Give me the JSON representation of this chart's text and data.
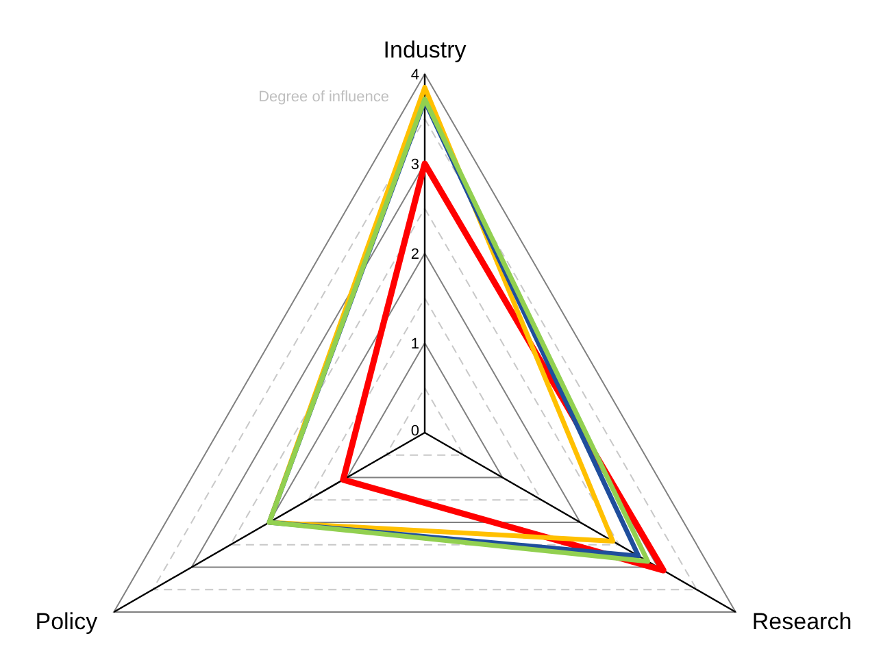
{
  "chart_data": {
    "type": "radar",
    "ylabel": "Degree of influence",
    "categories": [
      "Industry",
      "Research",
      "Policy"
    ],
    "series": [
      {
        "color": "#92d050",
        "values": [
          3.72,
          2.87,
          2.0
        ]
      },
      {
        "color": "#1f4e9c",
        "values": [
          3.7,
          2.75,
          2.0
        ]
      },
      {
        "color": "#ffc000",
        "values": [
          3.85,
          2.42,
          2.0
        ]
      },
      {
        "color": "#ff0000",
        "values": [
          3.0,
          3.07,
          1.05
        ]
      }
    ],
    "ylim": [
      0,
      4
    ],
    "yticks": [
      0,
      1,
      2,
      3,
      4
    ],
    "grid": true,
    "legend": false,
    "marker": "none"
  }
}
